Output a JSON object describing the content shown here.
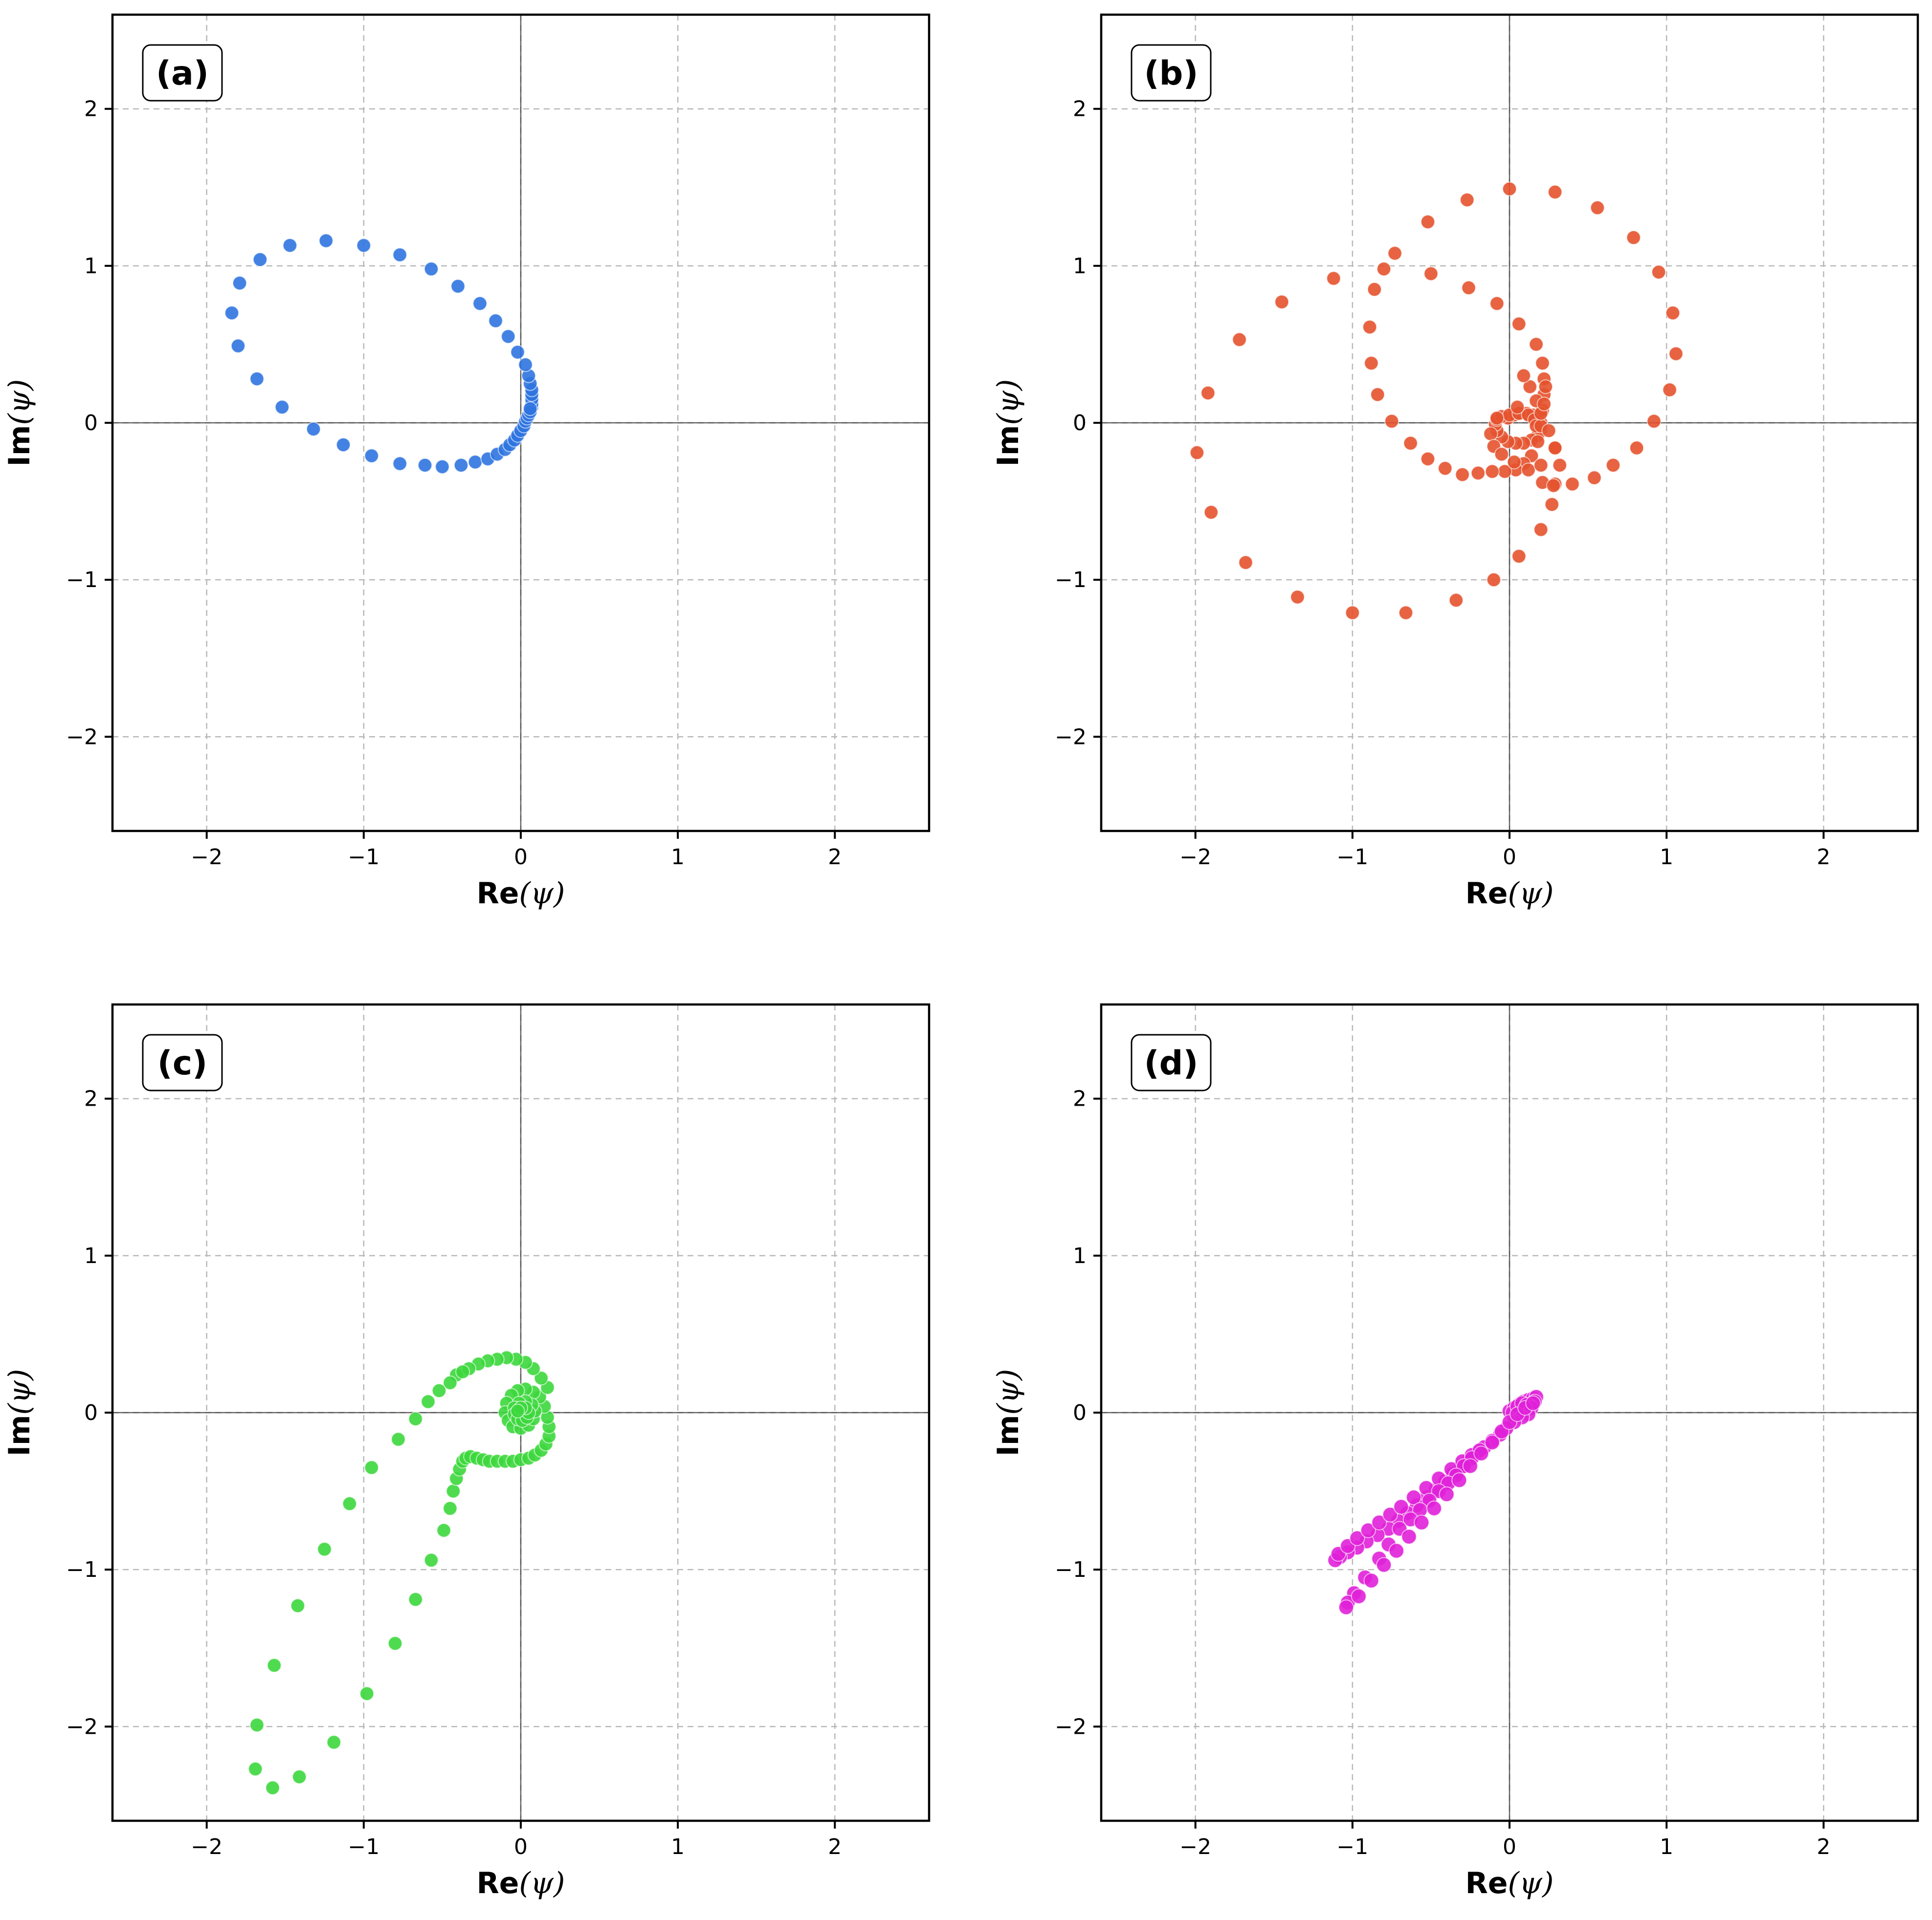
{
  "colors": {
    "a": "#2f74e0",
    "b": "#e4522e",
    "c": "#3cd73c",
    "d": "#e020d8"
  },
  "chart_data": [
    {
      "type": "scatter",
      "panel_label": "(a)",
      "xlabel_bold": "Re",
      "xlabel_symbol": "(ψ)",
      "ylabel_bold": "Im",
      "ylabel_symbol": "(ψ)",
      "xlim": [
        -2.6,
        2.6
      ],
      "ylim": [
        -2.6,
        2.6
      ],
      "xticks": [
        -2,
        -1,
        0,
        1,
        2
      ],
      "yticks": [
        -2,
        -1,
        0,
        1,
        2
      ],
      "grid": true,
      "color_key": "a",
      "points": [
        [
          0.07,
          0.1
        ],
        [
          0.07,
          0.12
        ],
        [
          0.07,
          0.15
        ],
        [
          0.07,
          0.18
        ],
        [
          0.07,
          0.21
        ],
        [
          0.06,
          0.25
        ],
        [
          0.05,
          0.3
        ],
        [
          0.03,
          0.37
        ],
        [
          -0.02,
          0.45
        ],
        [
          -0.08,
          0.55
        ],
        [
          -0.16,
          0.65
        ],
        [
          -0.26,
          0.76
        ],
        [
          -0.4,
          0.87
        ],
        [
          -0.57,
          0.98
        ],
        [
          -0.77,
          1.07
        ],
        [
          -1.0,
          1.13
        ],
        [
          -1.24,
          1.16
        ],
        [
          -1.47,
          1.13
        ],
        [
          -1.66,
          1.04
        ],
        [
          -1.79,
          0.89
        ],
        [
          -1.84,
          0.7
        ],
        [
          -1.8,
          0.49
        ],
        [
          -1.68,
          0.28
        ],
        [
          -1.52,
          0.1
        ],
        [
          -1.32,
          -0.04
        ],
        [
          -1.13,
          -0.14
        ],
        [
          -0.95,
          -0.21
        ],
        [
          -0.77,
          -0.26
        ],
        [
          -0.61,
          -0.27
        ],
        [
          -0.5,
          -0.28
        ],
        [
          -0.38,
          -0.27
        ],
        [
          -0.29,
          -0.25
        ],
        [
          -0.21,
          -0.23
        ],
        [
          -0.15,
          -0.2
        ],
        [
          -0.1,
          -0.17
        ],
        [
          -0.07,
          -0.14
        ],
        [
          -0.04,
          -0.11
        ],
        [
          -0.02,
          -0.08
        ],
        [
          0.0,
          -0.05
        ],
        [
          0.02,
          -0.02
        ],
        [
          0.03,
          0.01
        ],
        [
          0.04,
          0.03
        ],
        [
          0.05,
          0.05
        ],
        [
          0.06,
          0.07
        ],
        [
          0.06,
          0.09
        ]
      ]
    },
    {
      "type": "scatter",
      "panel_label": "(b)",
      "xlabel_bold": "Re",
      "xlabel_symbol": "(ψ)",
      "ylabel_bold": "Im",
      "ylabel_symbol": "(ψ)",
      "xlim": [
        -2.6,
        2.6
      ],
      "ylim": [
        -2.6,
        2.6
      ],
      "xticks": [
        -2,
        -1,
        0,
        1,
        2
      ],
      "yticks": [
        -2,
        -1,
        0,
        1,
        2
      ],
      "grid": true,
      "color_key": "b",
      "points": [
        [
          -0.01,
          0.03
        ],
        [
          0.03,
          0.05
        ],
        [
          0.07,
          0.06
        ],
        [
          0.11,
          0.06
        ],
        [
          0.15,
          0.05
        ],
        [
          0.18,
          0.03
        ],
        [
          0.2,
          0.0
        ],
        [
          0.2,
          -0.04
        ],
        [
          0.18,
          -0.08
        ],
        [
          0.14,
          -0.11
        ],
        [
          0.09,
          -0.13
        ],
        [
          0.04,
          -0.13
        ],
        [
          -0.01,
          -0.12
        ],
        [
          -0.05,
          -0.09
        ],
        [
          -0.08,
          -0.05
        ],
        [
          -0.09,
          -0.01
        ],
        [
          -0.08,
          0.02
        ],
        [
          -0.05,
          0.04
        ],
        [
          0.0,
          0.05
        ],
        [
          0.06,
          0.06
        ],
        [
          0.12,
          0.05
        ],
        [
          0.16,
          0.02
        ],
        [
          0.17,
          -0.02
        ],
        [
          0.22,
          0.28
        ],
        [
          0.22,
          0.18
        ],
        [
          0.21,
          0.08
        ],
        [
          0.2,
          -0.02
        ],
        [
          0.18,
          -0.12
        ],
        [
          0.14,
          -0.21
        ],
        [
          0.09,
          -0.26
        ],
        [
          0.04,
          -0.3
        ],
        [
          -0.03,
          -0.31
        ],
        [
          -0.11,
          -0.31
        ],
        [
          -0.2,
          -0.32
        ],
        [
          -0.3,
          -0.33
        ],
        [
          -0.41,
          -0.29
        ],
        [
          -0.52,
          -0.23
        ],
        [
          -0.63,
          -0.13
        ],
        [
          -0.75,
          0.01
        ],
        [
          -0.84,
          0.18
        ],
        [
          -0.88,
          0.38
        ],
        [
          -0.89,
          0.61
        ],
        [
          -0.86,
          0.85
        ],
        [
          -0.73,
          1.08
        ],
        [
          -0.52,
          1.28
        ],
        [
          -0.27,
          1.42
        ],
        [
          0.0,
          1.49
        ],
        [
          0.29,
          1.47
        ],
        [
          0.56,
          1.37
        ],
        [
          0.79,
          1.18
        ],
        [
          0.95,
          0.96
        ],
        [
          1.04,
          0.7
        ],
        [
          1.06,
          0.44
        ],
        [
          1.02,
          0.21
        ],
        [
          0.92,
          0.01
        ],
        [
          0.81,
          -0.16
        ],
        [
          0.66,
          -0.27
        ],
        [
          0.54,
          -0.35
        ],
        [
          0.4,
          -0.39
        ],
        [
          0.29,
          -0.39
        ],
        [
          0.21,
          -0.38
        ],
        [
          0.32,
          -0.27
        ],
        [
          0.29,
          -0.16
        ],
        [
          0.25,
          -0.05
        ],
        [
          0.2,
          0.06
        ],
        [
          0.17,
          0.14
        ],
        [
          0.13,
          0.23
        ],
        [
          0.09,
          0.3
        ],
        [
          0.05,
          0.1
        ],
        [
          -0.08,
          0.03
        ],
        [
          -0.12,
          -0.07
        ],
        [
          -0.1,
          -0.15
        ],
        [
          -0.05,
          -0.2
        ],
        [
          0.03,
          -0.25
        ],
        [
          0.12,
          -0.3
        ],
        [
          0.2,
          -0.27
        ],
        [
          0.29,
          -0.16
        ],
        [
          0.28,
          -0.4
        ],
        [
          0.27,
          -0.52
        ],
        [
          0.2,
          -0.68
        ],
        [
          0.06,
          -0.85
        ],
        [
          -0.1,
          -1.0
        ],
        [
          -0.34,
          -1.13
        ],
        [
          -0.66,
          -1.21
        ],
        [
          -1.0,
          -1.21
        ],
        [
          -1.35,
          -1.11
        ],
        [
          -1.68,
          -0.89
        ],
        [
          -1.9,
          -0.57
        ],
        [
          -1.99,
          -0.19
        ],
        [
          -1.92,
          0.19
        ],
        [
          -1.72,
          0.53
        ],
        [
          -1.45,
          0.77
        ],
        [
          -1.12,
          0.92
        ],
        [
          -0.8,
          0.98
        ],
        [
          -0.5,
          0.95
        ],
        [
          -0.26,
          0.86
        ],
        [
          -0.08,
          0.76
        ],
        [
          0.06,
          0.63
        ],
        [
          0.17,
          0.5
        ],
        [
          0.21,
          0.38
        ],
        [
          0.23,
          0.23
        ],
        [
          0.22,
          0.12
        ]
      ]
    },
    {
      "type": "scatter",
      "panel_label": "(c)",
      "xlabel_bold": "Re",
      "xlabel_symbol": "(ψ)",
      "ylabel_bold": "Im",
      "ylabel_symbol": "(ψ)",
      "xlim": [
        -2.6,
        2.6
      ],
      "ylim": [
        -2.6,
        2.6
      ],
      "xticks": [
        -2,
        -1,
        0,
        1,
        2
      ],
      "yticks": [
        -2,
        -1,
        0,
        1,
        2
      ],
      "grid": true,
      "color_key": "c",
      "points": [
        [
          -0.41,
          0.24
        ],
        [
          -0.45,
          0.19
        ],
        [
          -0.52,
          0.14
        ],
        [
          -0.59,
          0.07
        ],
        [
          -0.67,
          -0.04
        ],
        [
          -0.78,
          -0.17
        ],
        [
          -0.95,
          -0.35
        ],
        [
          -1.09,
          -0.58
        ],
        [
          -1.25,
          -0.87
        ],
        [
          -1.42,
          -1.23
        ],
        [
          -1.57,
          -1.61
        ],
        [
          -1.68,
          -1.99
        ],
        [
          -1.69,
          -2.27
        ],
        [
          -1.58,
          -2.39
        ],
        [
          -1.41,
          -2.32
        ],
        [
          -1.19,
          -2.1
        ],
        [
          -0.98,
          -1.79
        ],
        [
          -0.8,
          -1.47
        ],
        [
          -0.67,
          -1.19
        ],
        [
          -0.57,
          -0.94
        ],
        [
          -0.49,
          -0.75
        ],
        [
          -0.45,
          -0.61
        ],
        [
          -0.43,
          -0.5
        ],
        [
          -0.41,
          -0.42
        ],
        [
          -0.39,
          -0.36
        ],
        [
          -0.37,
          -0.31
        ],
        [
          -0.35,
          -0.29
        ],
        [
          -0.32,
          -0.28
        ],
        [
          -0.28,
          -0.29
        ],
        [
          -0.24,
          -0.3
        ],
        [
          -0.2,
          -0.31
        ],
        [
          -0.15,
          -0.31
        ],
        [
          -0.1,
          -0.31
        ],
        [
          -0.05,
          -0.31
        ],
        [
          0.0,
          -0.3
        ],
        [
          0.05,
          -0.29
        ],
        [
          0.09,
          -0.27
        ],
        [
          0.13,
          -0.24
        ],
        [
          0.16,
          -0.2
        ],
        [
          0.18,
          -0.15
        ],
        [
          0.18,
          -0.09
        ],
        [
          0.17,
          -0.03
        ],
        [
          0.15,
          0.04
        ],
        [
          0.12,
          0.1
        ],
        [
          0.08,
          0.13
        ],
        [
          0.03,
          0.15
        ],
        [
          -0.02,
          0.14
        ],
        [
          -0.06,
          0.11
        ],
        [
          -0.09,
          0.06
        ],
        [
          -0.1,
          0.0
        ],
        [
          -0.08,
          -0.05
        ],
        [
          -0.05,
          -0.09
        ],
        [
          0.0,
          -0.1
        ],
        [
          0.05,
          -0.08
        ],
        [
          0.08,
          -0.04
        ],
        [
          0.09,
          0.01
        ],
        [
          0.07,
          0.05
        ],
        [
          0.03,
          0.07
        ],
        [
          -0.01,
          0.06
        ],
        [
          -0.04,
          0.03
        ],
        [
          -0.04,
          -0.01
        ],
        [
          -0.02,
          -0.04
        ],
        [
          0.01,
          -0.05
        ],
        [
          0.04,
          -0.03
        ],
        [
          0.05,
          0.0
        ],
        [
          0.03,
          0.03
        ],
        [
          0.0,
          0.03
        ],
        [
          -0.02,
          0.01
        ],
        [
          0.17,
          0.16
        ],
        [
          0.13,
          0.22
        ],
        [
          0.08,
          0.28
        ],
        [
          0.03,
          0.32
        ],
        [
          -0.03,
          0.34
        ],
        [
          -0.09,
          0.35
        ],
        [
          -0.15,
          0.34
        ],
        [
          -0.21,
          0.33
        ],
        [
          -0.27,
          0.31
        ],
        [
          -0.33,
          0.28
        ],
        [
          -0.37,
          0.26
        ]
      ]
    },
    {
      "type": "scatter",
      "panel_label": "(d)",
      "xlabel_bold": "Re",
      "xlabel_symbol": "(ψ)",
      "ylabel_bold": "Im",
      "ylabel_symbol": "(ψ)",
      "xlim": [
        -2.6,
        2.6
      ],
      "ylim": [
        -2.6,
        2.6
      ],
      "xticks": [
        -2,
        -1,
        0,
        1,
        2
      ],
      "yticks": [
        -2,
        -1,
        0,
        1,
        2
      ],
      "grid": true,
      "color_key": "d",
      "points": [
        [
          0.0,
          0.01
        ],
        [
          0.03,
          0.03
        ],
        [
          0.06,
          0.05
        ],
        [
          0.09,
          0.07
        ],
        [
          0.12,
          0.08
        ],
        [
          0.15,
          0.09
        ],
        [
          0.17,
          0.1
        ],
        [
          0.16,
          0.07
        ],
        [
          0.13,
          0.04
        ],
        [
          0.1,
          0.02
        ],
        [
          0.07,
          0.0
        ],
        [
          0.04,
          -0.02
        ],
        [
          0.02,
          0.0
        ],
        [
          0.05,
          0.04
        ],
        [
          0.08,
          0.06
        ],
        [
          0.11,
          0.05
        ],
        [
          0.14,
          0.03
        ],
        [
          0.12,
          -0.01
        ],
        [
          0.08,
          -0.03
        ],
        [
          0.03,
          -0.06
        ],
        [
          -0.02,
          -0.1
        ],
        [
          -0.06,
          -0.14
        ],
        [
          -0.11,
          -0.18
        ],
        [
          -0.16,
          -0.22
        ],
        [
          -0.21,
          -0.26
        ],
        [
          -0.26,
          -0.3
        ],
        [
          -0.31,
          -0.35
        ],
        [
          -0.36,
          -0.39
        ],
        [
          -0.41,
          -0.44
        ],
        [
          -0.47,
          -0.49
        ],
        [
          -0.53,
          -0.54
        ],
        [
          -0.59,
          -0.59
        ],
        [
          -0.65,
          -0.64
        ],
        [
          -0.71,
          -0.69
        ],
        [
          -0.77,
          -0.74
        ],
        [
          -0.84,
          -0.78
        ],
        [
          -0.91,
          -0.82
        ],
        [
          -0.97,
          -0.86
        ],
        [
          -1.03,
          -0.89
        ],
        [
          -1.08,
          -0.92
        ],
        [
          -1.11,
          -0.94
        ],
        [
          -1.09,
          -0.9
        ],
        [
          -1.03,
          -0.85
        ],
        [
          -0.97,
          -0.8
        ],
        [
          -0.9,
          -0.75
        ],
        [
          -0.83,
          -0.7
        ],
        [
          -0.76,
          -0.65
        ],
        [
          -0.69,
          -0.6
        ],
        [
          -0.61,
          -0.54
        ],
        [
          -0.53,
          -0.48
        ],
        [
          -0.45,
          -0.42
        ],
        [
          -0.37,
          -0.36
        ],
        [
          -0.3,
          -0.31
        ],
        [
          -0.24,
          -0.27
        ],
        [
          -0.19,
          -0.24
        ],
        [
          -0.24,
          -0.29
        ],
        [
          -0.29,
          -0.34
        ],
        [
          -0.34,
          -0.4
        ],
        [
          -0.39,
          -0.45
        ],
        [
          -0.45,
          -0.5
        ],
        [
          -0.51,
          -0.56
        ],
        [
          -0.57,
          -0.62
        ],
        [
          -0.63,
          -0.68
        ],
        [
          -0.7,
          -0.74
        ],
        [
          -0.77,
          -0.84
        ],
        [
          -0.83,
          -0.93
        ],
        [
          -0.92,
          -1.05
        ],
        [
          -0.99,
          -1.15
        ],
        [
          -1.03,
          -1.21
        ],
        [
          -1.04,
          -1.24
        ],
        [
          -0.96,
          -1.17
        ],
        [
          -0.88,
          -1.07
        ],
        [
          -0.8,
          -0.97
        ],
        [
          -0.72,
          -0.88
        ],
        [
          -0.64,
          -0.79
        ],
        [
          -0.56,
          -0.7
        ],
        [
          -0.48,
          -0.61
        ],
        [
          -0.4,
          -0.52
        ],
        [
          -0.32,
          -0.43
        ],
        [
          -0.25,
          -0.34
        ],
        [
          -0.18,
          -0.26
        ],
        [
          -0.11,
          -0.19
        ],
        [
          -0.05,
          -0.12
        ],
        [
          0.0,
          -0.06
        ],
        [
          0.05,
          -0.01
        ],
        [
          0.1,
          0.03
        ],
        [
          0.15,
          0.06
        ]
      ]
    }
  ]
}
